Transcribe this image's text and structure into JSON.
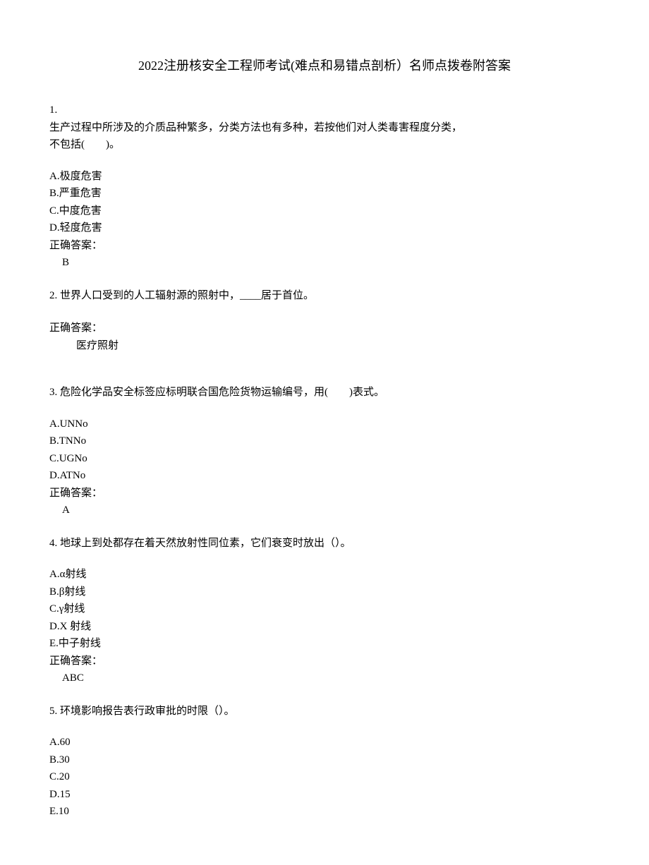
{
  "title": "2022注册核安全工程师考试(难点和易错点剖析）名师点拨卷附答案",
  "questions": [
    {
      "num": "1.",
      "text_lines": [
        "生产过程中所涉及的介质品种繁多，分类方法也有多种，若按他们对人类毒害程度分类，",
        "不包括(　　)。"
      ],
      "options": [
        "A.极度危害",
        "B.严重危害",
        "C.中度危害",
        "D.轻度危害"
      ],
      "answer_label": "正确答案：",
      "answer_value": "B",
      "answer_indent": "small"
    },
    {
      "num": "2.",
      "text_lines": [
        "世界人口受到的人工辐射源的照射中，____居于首位。"
      ],
      "options": [],
      "answer_label": "正确答案：",
      "answer_value": "医疗照射",
      "answer_indent": "large"
    },
    {
      "num": "3.",
      "text_lines": [
        "危险化学品安全标签应标明联合国危险货物运输编号，用(　　)表式。"
      ],
      "options": [
        "A.UNNo",
        "B.TNNo",
        "C.UGNo",
        "D.ATNo"
      ],
      "answer_label": "正确答案：",
      "answer_value": "A",
      "answer_indent": "small"
    },
    {
      "num": "4.",
      "text_lines": [
        "地球上到处都存在着天然放射性同位素，它们衰变时放出（）。"
      ],
      "options": [
        "A.α射线",
        "B.β射线",
        "C.γ射线",
        "D.X 射线",
        "E.中子射线"
      ],
      "answer_label": "正确答案：",
      "answer_value": "ABC",
      "answer_indent": "small"
    },
    {
      "num": "5.",
      "text_lines": [
        "环境影响报告表行政审批的时限（）。"
      ],
      "options": [
        "A.60",
        "B.30",
        "C.20",
        "D.15",
        "E.10"
      ],
      "answer_label": "",
      "answer_value": "",
      "answer_indent": "none"
    }
  ]
}
